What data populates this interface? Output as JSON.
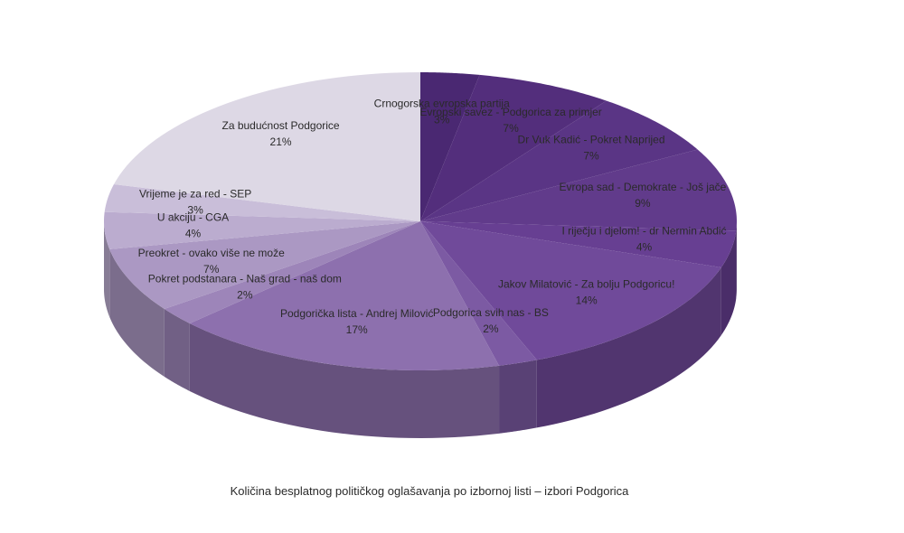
{
  "chart_data": {
    "type": "pie",
    "title": "Količina besplatnog političkog oglašavanja po izbornoj listi – izbori Podgorica",
    "categories": [
      "Crnogorska evropska partija",
      "Evropski savez - Podgorica za primjer",
      "Dr Vuk Kadić - Pokret Naprijed",
      "Evropa sad - Demokrate - Još jače",
      "I riječju i djelom! - dr Nermin Abdić",
      "Jakov Milatović - Za bolju Podgoricu!",
      "Podgorica svih nas - BS",
      "Podgorička lista - Andrej Milović",
      "Pokret podstanara - Naš grad - naš dom",
      "Preokret - ovako više ne može",
      "U akciju - CGA",
      "Vrijeme je za red - SEP",
      "Za budućnost Podgorice"
    ],
    "values": [
      3,
      7,
      7,
      9,
      4,
      14,
      2,
      17,
      2,
      7,
      4,
      3,
      21
    ],
    "value_labels": [
      "3%",
      "7%",
      "7%",
      "9%",
      "4%",
      "14%",
      "2%",
      "17%",
      "2%",
      "7%",
      "4%",
      "3%",
      "21%"
    ],
    "colors": [
      "#4a2872",
      "#532e7c",
      "#5a3585",
      "#613b8b",
      "#673f92",
      "#704a9a",
      "#7c5aa3",
      "#8d70ae",
      "#9d85b9",
      "#ab98c3",
      "#bbaccf",
      "#c9bed9",
      "#ddd8e5"
    ]
  }
}
